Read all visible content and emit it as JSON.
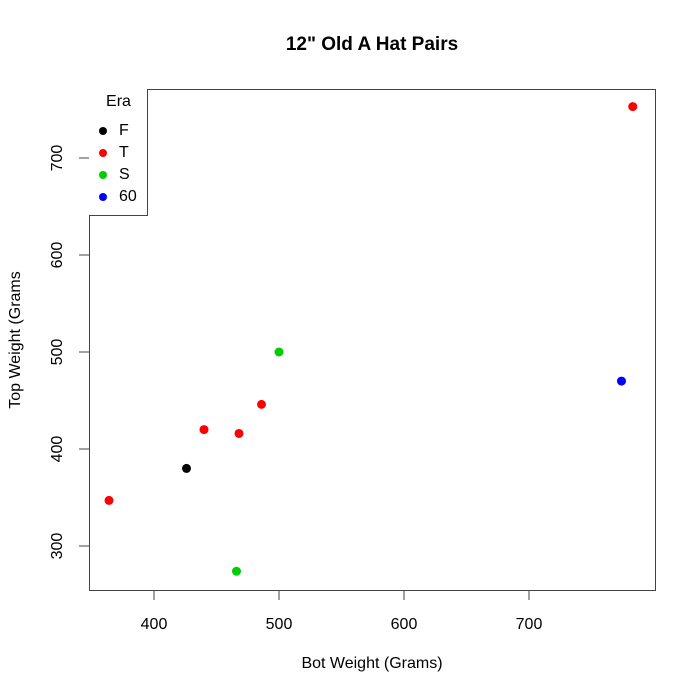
{
  "chart_data": {
    "type": "scatter",
    "title": "12\" Old A Hat Pairs",
    "xlabel": "Bot Weight (Grams)",
    "ylabel": "Top Weight (Grams",
    "xlim": [
      350,
      800
    ],
    "ylim": [
      258,
      775
    ],
    "xticks": [
      400,
      500,
      600,
      700
    ],
    "yticks": [
      300,
      400,
      500,
      600,
      700
    ],
    "grid": false,
    "legend": {
      "title": "Era",
      "position": "top-left"
    },
    "series": [
      {
        "name": "F",
        "color": "#000000",
        "points": [
          [
            426,
            380
          ]
        ]
      },
      {
        "name": "T",
        "color": "#ff0000",
        "points": [
          [
            364,
            347
          ],
          [
            440,
            420
          ],
          [
            468,
            416
          ],
          [
            486,
            446
          ],
          [
            783,
            753
          ]
        ]
      },
      {
        "name": "S",
        "color": "#00cd00",
        "points": [
          [
            500,
            500
          ],
          [
            466,
            274
          ]
        ]
      },
      {
        "name": "60",
        "color": "#0000ff",
        "points": [
          [
            774,
            470
          ]
        ]
      }
    ]
  }
}
